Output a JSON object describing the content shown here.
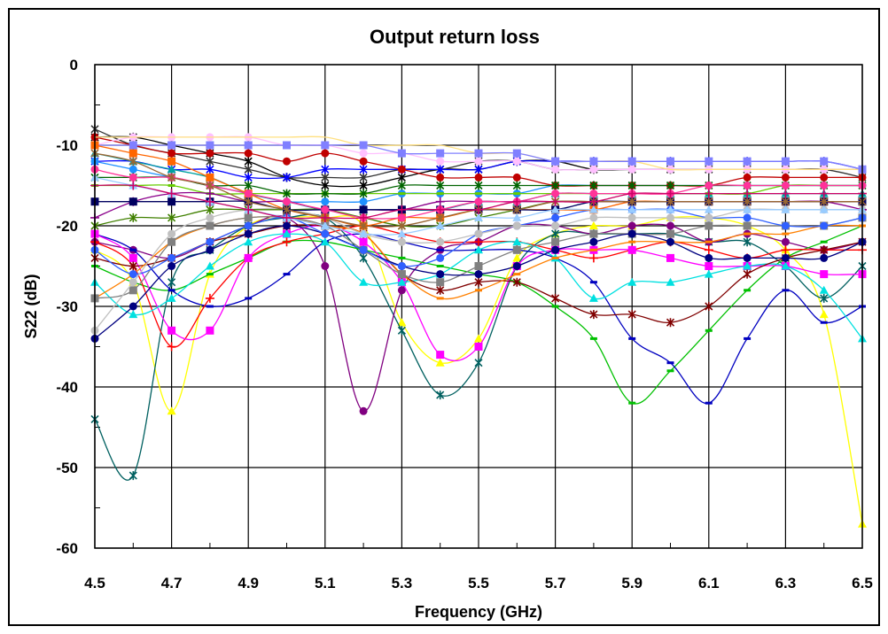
{
  "chart_data": {
    "type": "line",
    "title": "Output return loss",
    "xlabel": "Frequency (GHz)",
    "ylabel": "S22 (dB)",
    "xlim": [
      4.5,
      6.5
    ],
    "ylim": [
      -60,
      0
    ],
    "x_ticks": [
      4.5,
      4.7,
      4.9,
      5.1,
      5.3,
      5.5,
      5.7,
      5.9,
      6.1,
      6.3,
      6.5
    ],
    "y_ticks": [
      0,
      -10,
      -20,
      -30,
      -40,
      -50,
      -60
    ],
    "x_tick_labels": [
      "4.5",
      "4.7",
      "4.9",
      "5.1",
      "5.3",
      "5.5",
      "5.7",
      "5.9",
      "6.1",
      "6.3",
      "6.5"
    ],
    "y_tick_labels": [
      "0",
      "-10",
      "-20",
      "-30",
      "-40",
      "-50",
      "-60"
    ],
    "grid": true,
    "legend": "none",
    "x": [
      4.5,
      4.6,
      4.7,
      4.8,
      4.9,
      5.0,
      5.1,
      5.2,
      5.3,
      5.4,
      5.5,
      5.6,
      5.7,
      5.8,
      5.9,
      6.0,
      6.1,
      6.2,
      6.3,
      6.4,
      6.5
    ],
    "series": [
      {
        "color": "#FFFF00",
        "marker": "triangle",
        "values": [
          -23,
          -27,
          -43,
          -26,
          -20,
          -19,
          -19,
          -20,
          -32,
          -37,
          -34,
          -24,
          -21,
          -20,
          -20,
          -19,
          -19,
          -20,
          -23,
          -31,
          -57
        ]
      },
      {
        "color": "#006060",
        "marker": "star",
        "values": [
          -44,
          -51,
          -27,
          -23,
          -20,
          -19,
          -19,
          -24,
          -33,
          -41,
          -37,
          -25,
          -21,
          -21,
          -21,
          -21,
          -22,
          -22,
          -25,
          -29,
          -25
        ]
      },
      {
        "color": "#800080",
        "marker": "circle",
        "values": [
          -22,
          -23,
          -24,
          -22,
          -20,
          -19,
          -25,
          -43,
          -28,
          -23,
          -22,
          -20,
          -20,
          -21,
          -20,
          -20,
          -22,
          -21,
          -22,
          -23,
          -22
        ]
      },
      {
        "color": "#00C000",
        "marker": "dash",
        "values": [
          -25,
          -27,
          -28,
          -26,
          -24,
          -22,
          -22,
          -23,
          -24,
          -25,
          -26,
          -27,
          -30,
          -34,
          -42,
          -38,
          -33,
          -28,
          -24,
          -22,
          -20
        ]
      },
      {
        "color": "#0000C0",
        "marker": "dash",
        "values": [
          -21,
          -23,
          -28,
          -30,
          -29,
          -26,
          -22,
          -21,
          -22,
          -23,
          -23,
          -23,
          -24,
          -27,
          -34,
          -37,
          -42,
          -34,
          -28,
          -32,
          -30
        ]
      },
      {
        "color": "#FF0000",
        "marker": "plus",
        "values": [
          -22,
          -25,
          -35,
          -29,
          -24,
          -22,
          -21,
          -20,
          -21,
          -22,
          -22,
          -22,
          -23,
          -24,
          -23,
          -22,
          -23,
          -24,
          -23,
          -23,
          -23
        ]
      },
      {
        "color": "#FF00FF",
        "marker": "square",
        "values": [
          -21,
          -24,
          -33,
          -33,
          -24,
          -21,
          -20,
          -22,
          -27,
          -36,
          -35,
          -25,
          -23,
          -23,
          -23,
          -24,
          -25,
          -25,
          -25,
          -26,
          -26
        ]
      },
      {
        "color": "#00E0E0",
        "marker": "triangle",
        "values": [
          -27,
          -31,
          -29,
          -25,
          -22,
          -21,
          -22,
          -27,
          -27,
          -26,
          -23,
          -22,
          -24,
          -29,
          -27,
          -27,
          -26,
          -25,
          -25,
          -28,
          -34
        ]
      },
      {
        "color": "#800000",
        "marker": "star",
        "values": [
          -24,
          -25,
          -24,
          -22,
          -21,
          -20,
          -20,
          -21,
          -26,
          -28,
          -27,
          -27,
          -29,
          -31,
          -31,
          -32,
          -30,
          -26,
          -24,
          -23,
          -22
        ]
      },
      {
        "color": "#FF8000",
        "marker": "dash",
        "values": [
          -29,
          -26,
          -22,
          -20,
          -19,
          -19,
          -20,
          -21,
          -26,
          -29,
          -28,
          -26,
          -24,
          -23,
          -22,
          -22,
          -22,
          -21,
          -21,
          -20,
          -20
        ]
      },
      {
        "color": "#808080",
        "marker": "square",
        "values": [
          -29,
          -28,
          -22,
          -20,
          -19,
          -19,
          -20,
          -23,
          -26,
          -27,
          -25,
          -23,
          -22,
          -21,
          -21,
          -21,
          -20,
          -20,
          -20,
          -20,
          -19
        ]
      },
      {
        "color": "#000080",
        "marker": "circle",
        "values": [
          -34,
          -30,
          -25,
          -23,
          -21,
          -20,
          -21,
          -23,
          -25,
          -26,
          -26,
          -25,
          -23,
          -22,
          -21,
          -22,
          -24,
          -24,
          -24,
          -24,
          -22
        ]
      },
      {
        "color": "#3060FF",
        "marker": "circle",
        "values": [
          -23,
          -26,
          -24,
          -22,
          -20,
          -19,
          -21,
          -23,
          -25,
          -24,
          -21,
          -20,
          -19,
          -18,
          -18,
          -18,
          -19,
          -19,
          -20,
          -20,
          -19
        ]
      },
      {
        "color": "#C0C0C0",
        "marker": "circle",
        "values": [
          -33,
          -27,
          -21,
          -19,
          -18,
          -18,
          -19,
          -21,
          -22,
          -22,
          -21,
          -20,
          -20,
          -19,
          -19,
          -19,
          -19,
          -18,
          -18,
          -18,
          -18
        ]
      },
      {
        "color": "#408000",
        "marker": "star",
        "values": [
          -20,
          -19,
          -19,
          -18,
          -18,
          -18,
          -18,
          -19,
          -20,
          -20,
          -19,
          -18,
          -17,
          -17,
          -17,
          -17,
          -17,
          -17,
          -17,
          -17,
          -17
        ]
      },
      {
        "color": "#000000",
        "marker": "star",
        "values": [
          -9,
          -9,
          -10,
          -11,
          -12,
          -14,
          -15,
          -15,
          -14,
          -13,
          -13,
          -12,
          -12,
          -13,
          -13,
          -13,
          -13,
          -13,
          -13,
          -13,
          -13
        ]
      },
      {
        "color": "#333333",
        "marker": "star",
        "values": [
          -8,
          -10,
          -11,
          -12,
          -13,
          -14,
          -14,
          -14,
          -13,
          -13,
          -12,
          -12,
          -13,
          -13,
          -13,
          -13,
          -13,
          -13,
          -13,
          -13,
          -14
        ]
      },
      {
        "color": "#0000FF",
        "marker": "star",
        "values": [
          -12,
          -12,
          -13,
          -13,
          -14,
          -14,
          -13,
          -13,
          -13,
          -13,
          -13,
          -12,
          -12,
          -12,
          -12,
          -12,
          -12,
          -12,
          -12,
          -12,
          -13
        ]
      },
      {
        "color": "#1E90FF",
        "marker": "circle",
        "values": [
          -12,
          -13,
          -14,
          -15,
          -16,
          -17,
          -17,
          -17,
          -16,
          -16,
          -16,
          -16,
          -15,
          -15,
          -15,
          -15,
          -15,
          -15,
          -15,
          -15,
          -15
        ]
      },
      {
        "color": "#C00000",
        "marker": "circle",
        "values": [
          -9,
          -10,
          -11,
          -11,
          -11,
          -12,
          -11,
          -12,
          -13,
          -14,
          -14,
          -14,
          -15,
          -15,
          -15,
          -15,
          -15,
          -14,
          -14,
          -14,
          -14
        ]
      },
      {
        "color": "#FFC0FF",
        "marker": "circle",
        "values": [
          -10,
          -9,
          -9,
          -9,
          -9,
          -10,
          -10,
          -11,
          -11,
          -12,
          -12,
          -12,
          -13,
          -13,
          -13,
          -13,
          -13,
          -13,
          -13,
          -13,
          -13
        ]
      },
      {
        "color": "#FFE080",
        "marker": "none",
        "values": [
          -9,
          -9,
          -9,
          -9,
          -9,
          -9,
          -9,
          -10,
          -10,
          -10,
          -11,
          -11,
          -12,
          -12,
          -12,
          -13,
          -13,
          -13,
          -13,
          -13,
          -13
        ]
      },
      {
        "color": "#8080FF",
        "marker": "square",
        "values": [
          -10,
          -10,
          -10,
          -10,
          -10,
          -10,
          -10,
          -10,
          -11,
          -11,
          -11,
          -11,
          -12,
          -12,
          -12,
          -12,
          -12,
          -12,
          -12,
          -12,
          -13
        ]
      },
      {
        "color": "#00A0A0",
        "marker": "triangle",
        "values": [
          -11,
          -12,
          -13,
          -14,
          -16,
          -17,
          -18,
          -18,
          -18,
          -18,
          -17,
          -17,
          -16,
          -16,
          -16,
          -16,
          -16,
          -16,
          -16,
          -16,
          -16
        ]
      },
      {
        "color": "#66CC00",
        "marker": "dash",
        "values": [
          -15,
          -15,
          -15,
          -16,
          -16,
          -16,
          -16,
          -16,
          -16,
          -16,
          -16,
          -16,
          -16,
          -16,
          -16,
          -16,
          -16,
          -16,
          -15,
          -15,
          -15
        ]
      },
      {
        "color": "#FF6600",
        "marker": "square",
        "values": [
          -10,
          -11,
          -12,
          -14,
          -16,
          -18,
          -19,
          -20,
          -19,
          -19,
          -18,
          -18,
          -18,
          -18,
          -17,
          -17,
          -17,
          -17,
          -17,
          -17,
          -17
        ]
      },
      {
        "color": "#006400",
        "marker": "star",
        "values": [
          -14,
          -14,
          -14,
          -15,
          -15,
          -16,
          -16,
          -16,
          -15,
          -15,
          -15,
          -15,
          -15,
          -15,
          -15,
          -15,
          -15,
          -15,
          -15,
          -15,
          -15
        ]
      },
      {
        "color": "#8B008B",
        "marker": "plus",
        "values": [
          -19,
          -17,
          -16,
          -16,
          -17,
          -17,
          -18,
          -18,
          -18,
          -17,
          -17,
          -17,
          -17,
          -17,
          -17,
          -17,
          -17,
          -17,
          -17,
          -17,
          -18
        ]
      },
      {
        "color": "#000060",
        "marker": "square",
        "values": [
          -17,
          -17,
          -17,
          -17,
          -17,
          -18,
          -18,
          -18,
          -18,
          -18,
          -18,
          -18,
          -18,
          -17,
          -17,
          -17,
          -17,
          -17,
          -17,
          -17,
          -17
        ]
      },
      {
        "color": "#FF3399",
        "marker": "circle",
        "values": [
          -13,
          -14,
          -14,
          -15,
          -16,
          -17,
          -18,
          -19,
          -19,
          -18,
          -17,
          -17,
          -16,
          -16,
          -16,
          -16,
          -15,
          -15,
          -15,
          -15,
          -15
        ]
      },
      {
        "color": "#996633",
        "marker": "star",
        "values": [
          -11,
          -12,
          -14,
          -15,
          -17,
          -18,
          -19,
          -20,
          -20,
          -19,
          -18,
          -18,
          -17,
          -17,
          -17,
          -17,
          -17,
          -17,
          -17,
          -17,
          -17
        ]
      },
      {
        "color": "#99CCFF",
        "marker": "triangle",
        "values": [
          -14,
          -15,
          -16,
          -17,
          -18,
          -19,
          -20,
          -21,
          -21,
          -20,
          -19,
          -19,
          -18,
          -18,
          -18,
          -18,
          -18,
          -18,
          -18,
          -18,
          -18
        ]
      },
      {
        "color": "#CC0066",
        "marker": "plus",
        "values": [
          -15,
          -15,
          -16,
          -17,
          -18,
          -19,
          -19,
          -19,
          -18,
          -18,
          -18,
          -17,
          -17,
          -17,
          -16,
          -16,
          -16,
          -16,
          -16,
          -16,
          -16
        ]
      }
    ]
  }
}
